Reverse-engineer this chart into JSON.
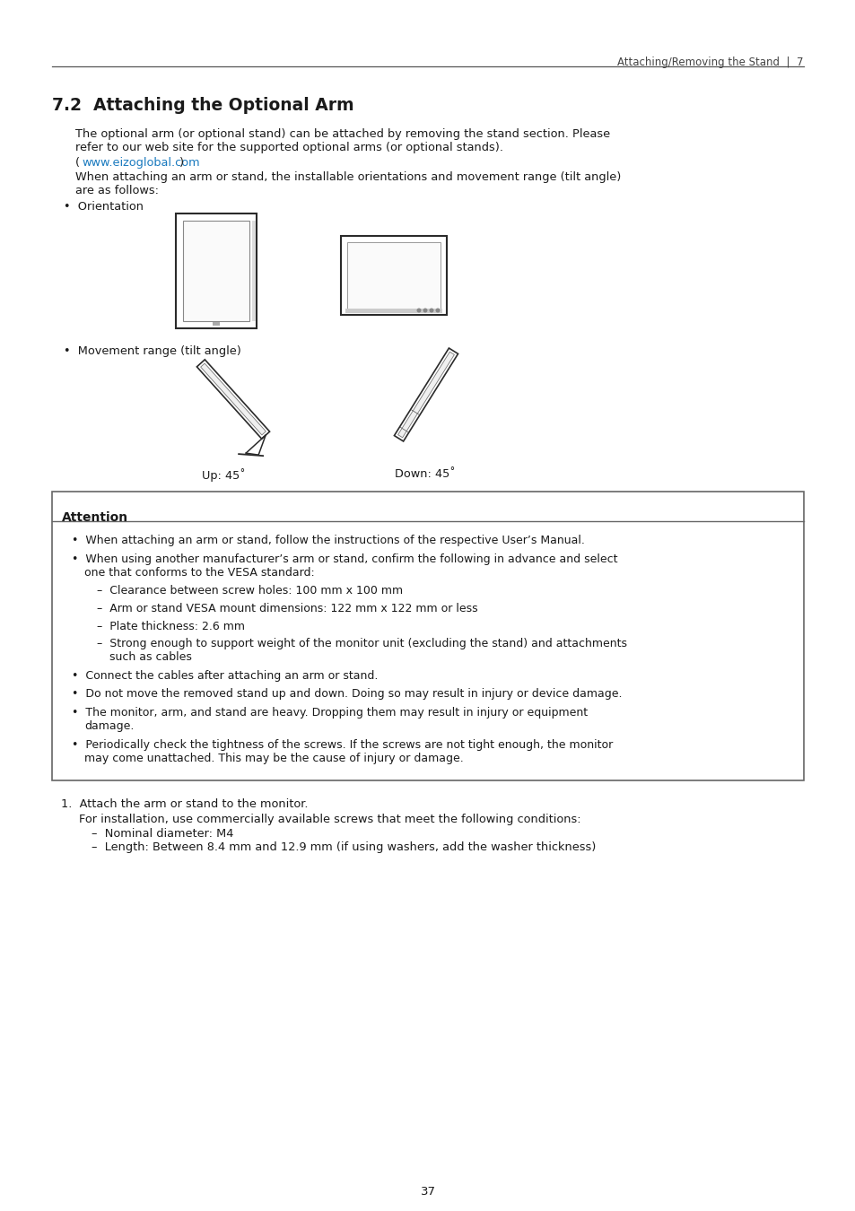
{
  "page_bg": "#ffffff",
  "header_text": "Attaching/Removing the Stand  |  7",
  "section_title": "7.2  Attaching the Optional Arm",
  "para1_line1": "The optional arm (or optional stand) can be attached by removing the stand section. Please",
  "para1_line2": "refer to our web site for the supported optional arms (or optional stands).",
  "link_prefix": "(",
  "link_text": "www.eizoglobal.com",
  "link_suffix": ")",
  "link_color": "#1a7abf",
  "para2_line1": "When attaching an arm or stand, the installable orientations and movement range (tilt angle)",
  "para2_line2": "are as follows:",
  "bullet_orientation": "•  Orientation",
  "bullet_movement": "•  Movement range (tilt angle)",
  "up_label": "Up: 45˚",
  "down_label": "Down: 45˚",
  "attention_title": "Attention",
  "attn_b0": "•  When attaching an arm or stand, follow the instructions of the respective User’s Manual.",
  "attn_b1a": "•  When using another manufacturer’s arm or stand, confirm the following in advance and select",
  "attn_b1b": "   one that conforms to the VESA standard:",
  "attn_s0": "–  Clearance between screw holes: 100 mm x 100 mm",
  "attn_s1": "–  Arm or stand VESA mount dimensions: 122 mm x 122 mm or less",
  "attn_s2": "–  Plate thickness: 2.6 mm",
  "attn_s3a": "–  Strong enough to support weight of the monitor unit (excluding the stand) and attachments",
  "attn_s3b": "   such as cables",
  "attn_b2": "•  Connect the cables after attaching an arm or stand.",
  "attn_b3": "•  Do not move the removed stand up and down. Doing so may result in injury or device damage.",
  "attn_b4a": "•  The monitor, arm, and stand are heavy. Dropping them may result in injury or equipment",
  "attn_b4b": "   damage.",
  "attn_b5a": "•  Periodically check the tightness of the screws. If the screws are not tight enough, the monitor",
  "attn_b5b": "   may come unattached. This may be the cause of injury or damage.",
  "step1": "1.  Attach the arm or stand to the monitor.",
  "step1_sub": "For installation, use commercially available screws that meet the following conditions:",
  "step1_s0": "–  Nominal diameter: M4",
  "step1_s1": "–  Length: Between 8.4 mm and 12.9 mm (if using washers, add the washer thickness)",
  "page_number": "37",
  "text_color": "#1a1a1a",
  "box_border": "#666666",
  "header_line_color": "#555555"
}
